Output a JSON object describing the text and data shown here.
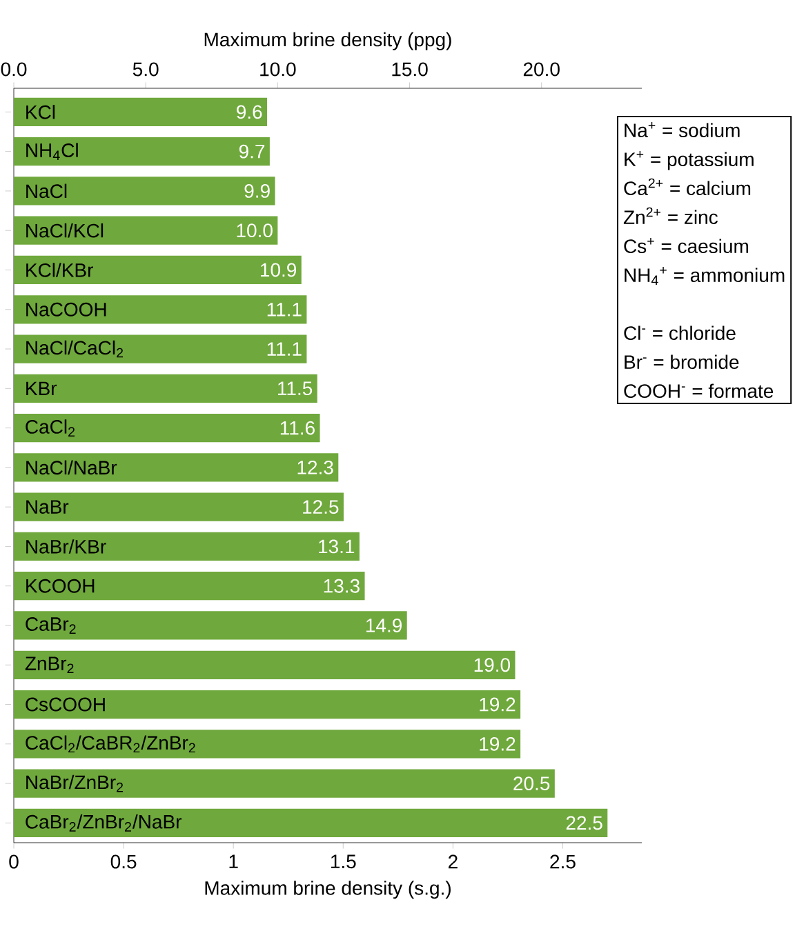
{
  "chart_data": {
    "type": "bar",
    "orientation": "horizontal",
    "xlabel": "Maximum brine density (ppg)",
    "x2label": "Maximum brine density (s.g.)",
    "categories": [
      "KCl",
      "NH$_{4}$Cl",
      "NaCl",
      "NaCl/KCl",
      "KCl/KBr",
      "NaCOOH",
      "NaCl/CaCl$_{2}$",
      "KBr",
      "CaCl$_{2}$",
      "NaCl/NaBr",
      "NaBr",
      "NaBr/KBr",
      "KCOOH",
      "CaBr$_{2}$",
      "ZnBr$_{2}$",
      "CsCOOH",
      "CaCl$_{2}$/CaBR$_{2}$/ZnBr$_{2}$",
      "NaBr/ZnBr$_{2}$",
      "CaBr$_{2}$/ZnBr$_{2}$/NaBr"
    ],
    "values": [
      9.6,
      9.7,
      9.9,
      10.0,
      10.9,
      11.1,
      11.1,
      11.5,
      11.6,
      12.3,
      12.5,
      13.1,
      13.3,
      14.9,
      19.0,
      19.2,
      19.2,
      20.5,
      22.5
    ],
    "value_labels": [
      "9.6",
      "9.7",
      "9.9",
      "10.0",
      "10.9",
      "11.1",
      "11.1",
      "11.5",
      "11.6",
      "12.3",
      "12.5",
      "13.1",
      "13.3",
      "14.9",
      "19.0",
      "19.2",
      "19.2",
      "20.5",
      "22.5"
    ],
    "color": "#6fa83c",
    "xlim": [
      0,
      23.8
    ],
    "xticks": [
      {
        "value": 0,
        "label": "0.0"
      },
      {
        "value": 5,
        "label": "5.0"
      },
      {
        "value": 10,
        "label": "10.0"
      },
      {
        "value": 15,
        "label": "15.0"
      },
      {
        "value": 20,
        "label": "20.0"
      }
    ],
    "x2lim": [
      0,
      2.86
    ],
    "x2ticks": [
      0,
      0.5,
      1,
      1.5,
      2,
      2.5
    ],
    "grid": false,
    "annotations": [
      "Na$^{+}$ = sodium",
      "K$^{+}$ = potassium",
      "Ca$^{2+}$ = calcium",
      "Zn$^{2+}$ = zinc",
      "Cs$^{+}$ = caesium",
      "NH$_{4}$$^{+}$ = ammonium",
      "Cl$^{-}$ = chloride",
      "Br$^{-}$ = bromide",
      "COOH$^{-}$ = formate"
    ]
  }
}
